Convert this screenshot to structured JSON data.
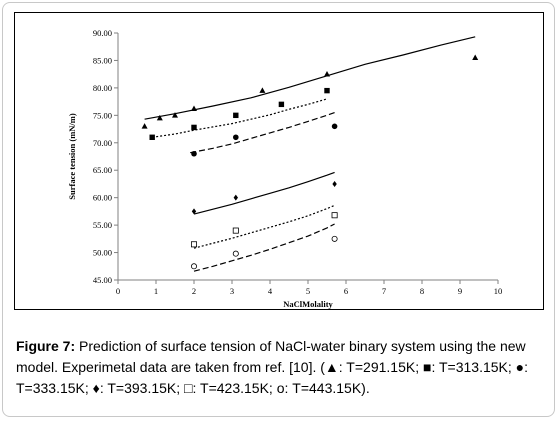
{
  "chart_data": {
    "type": "scatter",
    "xlabel": "NaClMolality",
    "ylabel": "Surface tension (mN/m)",
    "xlim": [
      0,
      10
    ],
    "ylim": [
      45,
      90
    ],
    "xticks": [
      0,
      1,
      2,
      3,
      4,
      5,
      6,
      7,
      8,
      9,
      10
    ],
    "yticks": [
      "45.00",
      "50.00",
      "55.00",
      "60.00",
      "65.00",
      "70.00",
      "75.00",
      "80.00",
      "85.00",
      "90.00"
    ],
    "grid": false,
    "series": [
      {
        "name": "T=291.15K",
        "marker": "filled-triangle",
        "points": [
          [
            0.7,
            73.0
          ],
          [
            1.1,
            74.5
          ],
          [
            1.5,
            75.0
          ],
          [
            2.0,
            76.2
          ],
          [
            3.8,
            79.5
          ],
          [
            5.5,
            82.5
          ],
          [
            9.4,
            85.5
          ]
        ]
      },
      {
        "name": "T=313.15K",
        "marker": "filled-square",
        "points": [
          [
            0.9,
            71.0
          ],
          [
            2.0,
            72.8
          ],
          [
            3.1,
            75.0
          ],
          [
            4.3,
            77.0
          ],
          [
            5.5,
            79.5
          ]
        ]
      },
      {
        "name": "T=333.15K",
        "marker": "filled-circle",
        "points": [
          [
            2.0,
            68.0
          ],
          [
            3.1,
            71.0
          ],
          [
            5.7,
            73.0
          ]
        ]
      },
      {
        "name": "T=393.15K",
        "marker": "filled-diamond",
        "points": [
          [
            2.0,
            57.5
          ],
          [
            3.1,
            60.0
          ],
          [
            5.7,
            62.5
          ]
        ]
      },
      {
        "name": "T=423.15K",
        "marker": "open-square",
        "points": [
          [
            2.0,
            51.5
          ],
          [
            3.1,
            54.0
          ],
          [
            5.7,
            56.8
          ]
        ]
      },
      {
        "name": "T=443.15K",
        "marker": "open-circle",
        "points": [
          [
            2.0,
            47.5
          ],
          [
            3.1,
            49.8
          ],
          [
            5.7,
            52.5
          ]
        ]
      }
    ],
    "model_curves": [
      {
        "style": "solid",
        "points": [
          [
            0.7,
            74.3
          ],
          [
            1.5,
            75.3
          ],
          [
            2.5,
            76.7
          ],
          [
            3.5,
            78.2
          ],
          [
            4.5,
            80.1
          ],
          [
            5.5,
            82.2
          ],
          [
            6.5,
            84.3
          ],
          [
            7.5,
            86.0
          ],
          [
            8.5,
            87.8
          ],
          [
            9.4,
            89.3
          ]
        ]
      },
      {
        "style": "dotted",
        "points": [
          [
            0.9,
            71.0
          ],
          [
            1.5,
            71.6
          ],
          [
            2.0,
            72.3
          ],
          [
            2.5,
            72.9
          ],
          [
            3.0,
            73.5
          ],
          [
            3.5,
            74.3
          ],
          [
            4.0,
            75.1
          ],
          [
            4.5,
            76.1
          ],
          [
            5.0,
            77.0
          ],
          [
            5.5,
            78.0
          ]
        ]
      },
      {
        "style": "dashed",
        "points": [
          [
            1.9,
            68.2
          ],
          [
            2.5,
            69.0
          ],
          [
            3.0,
            69.8
          ],
          [
            3.5,
            70.8
          ],
          [
            4.0,
            71.8
          ],
          [
            4.5,
            72.8
          ],
          [
            5.0,
            73.9
          ],
          [
            5.5,
            75.0
          ],
          [
            5.7,
            75.5
          ]
        ]
      },
      {
        "style": "solid",
        "points": [
          [
            2.0,
            57.0
          ],
          [
            2.5,
            57.9
          ],
          [
            3.0,
            58.8
          ],
          [
            3.5,
            59.8
          ],
          [
            4.0,
            60.8
          ],
          [
            4.5,
            61.8
          ],
          [
            5.0,
            62.9
          ],
          [
            5.5,
            64.1
          ],
          [
            5.7,
            64.6
          ]
        ]
      },
      {
        "style": "dotted",
        "points": [
          [
            2.0,
            50.8
          ],
          [
            2.5,
            51.7
          ],
          [
            3.0,
            52.6
          ],
          [
            3.5,
            53.6
          ],
          [
            4.0,
            54.6
          ],
          [
            4.5,
            55.6
          ],
          [
            5.0,
            56.7
          ],
          [
            5.5,
            58.0
          ],
          [
            5.7,
            58.6
          ]
        ]
      },
      {
        "style": "dashed",
        "points": [
          [
            2.0,
            46.6
          ],
          [
            2.5,
            47.5
          ],
          [
            3.0,
            48.5
          ],
          [
            3.5,
            49.5
          ],
          [
            4.0,
            50.6
          ],
          [
            4.5,
            51.8
          ],
          [
            5.0,
            53.0
          ],
          [
            5.5,
            54.5
          ],
          [
            5.7,
            55.2
          ]
        ]
      }
    ]
  },
  "caption": {
    "label": "Figure 7:",
    "text_1": " Prediction of surface tension of NaCl-water binary system using the new model. Experimetal data are taken from ref. [10]. (",
    "leg_1": ": T=291.15K; ",
    "leg_2": ": T=313.15K; ",
    "leg_3": ": T=333.15K; ",
    "leg_4": ": T=393.15K; ",
    "leg_5": ": T=423.15K; ",
    "leg_6": ": T=443.15K).",
    "sym_1": "▲",
    "sym_2": "■",
    "sym_3": "●",
    "sym_4": "♦",
    "sym_5": "□",
    "sym_6": "ο"
  }
}
